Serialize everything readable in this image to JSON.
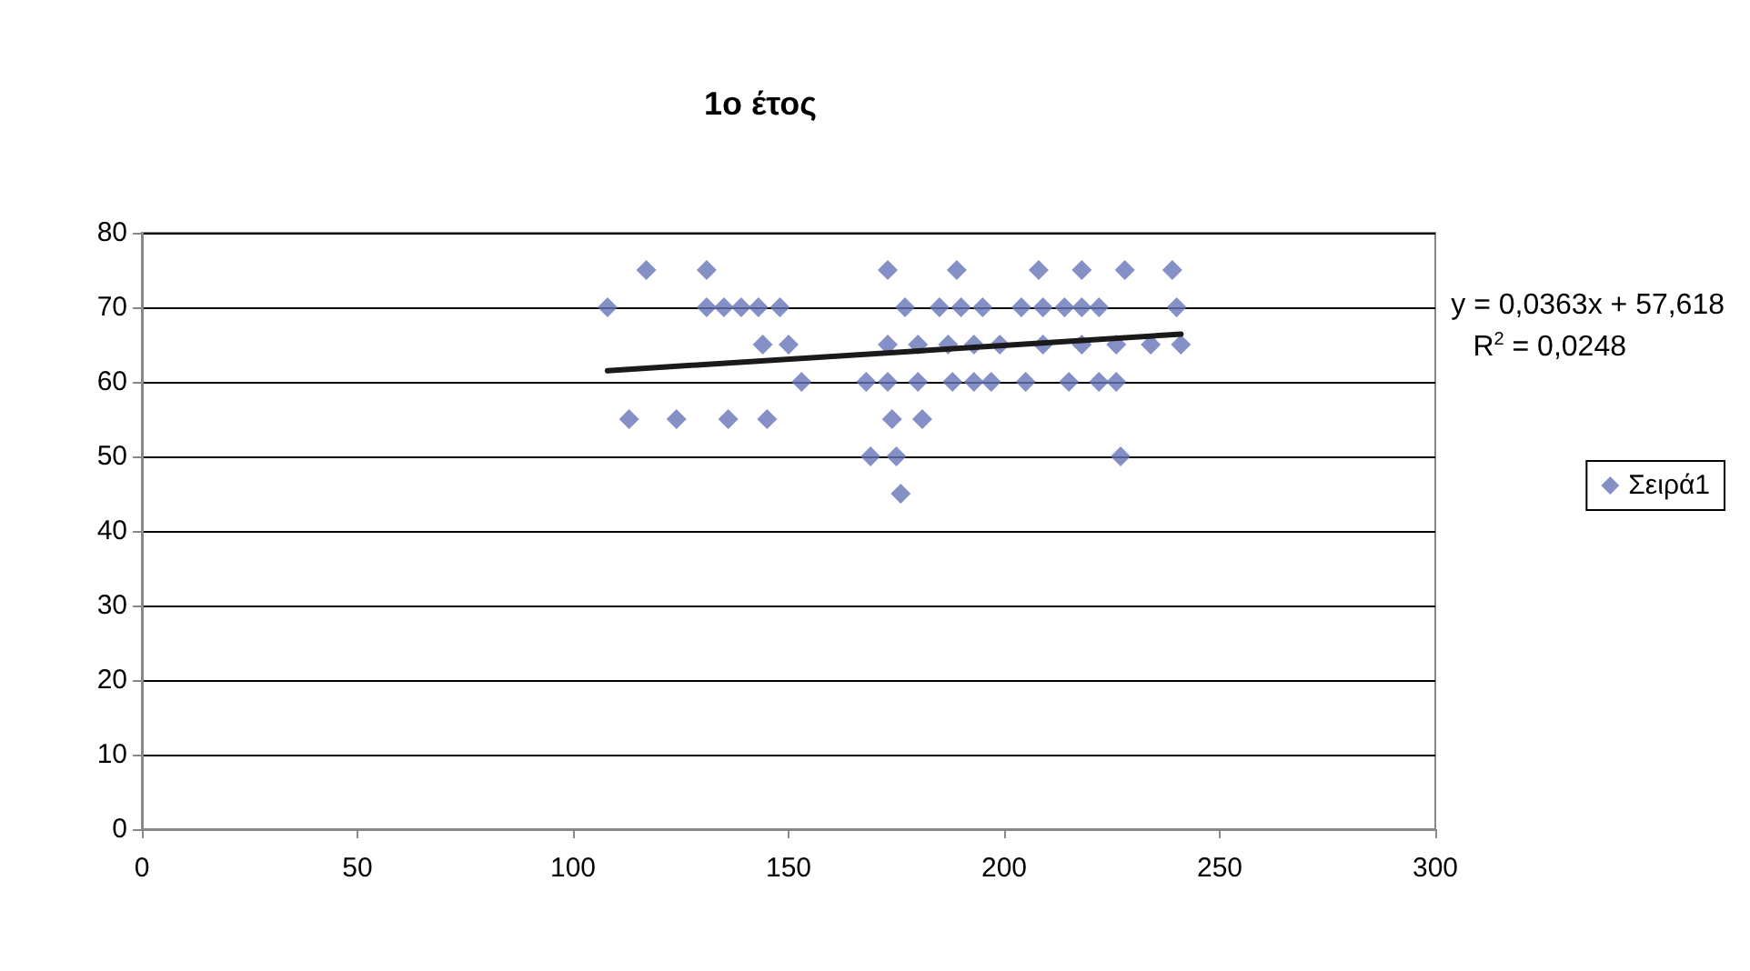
{
  "chart_data": {
    "type": "scatter",
    "title": "1ο έτος",
    "legend": "right",
    "grid": "y",
    "marker": "diamond",
    "xlim": [
      0,
      300
    ],
    "xticks": [
      0,
      50,
      100,
      150,
      200,
      250,
      300
    ],
    "ylim": [
      0,
      80
    ],
    "yticks": [
      0,
      10,
      20,
      30,
      40,
      50,
      60,
      70,
      80
    ],
    "annotations": [
      "y = 0,0363x + 57,618",
      "R$^{2}$ = 0,0248"
    ],
    "series": [
      {
        "name": "Σειρά1",
        "color": "#6675b8",
        "x": [
          117,
          131,
          173,
          189,
          208,
          218,
          228,
          239,
          108,
          131,
          135,
          139,
          143,
          148,
          177,
          185,
          190,
          195,
          204,
          209,
          214,
          218,
          222,
          240,
          144,
          150,
          173,
          180,
          187,
          193,
          199,
          209,
          218,
          226,
          234,
          241,
          153,
          168,
          173,
          180,
          188,
          193,
          197,
          205,
          215,
          222,
          226,
          113,
          124,
          136,
          145,
          174,
          181,
          169,
          175,
          227,
          176
        ],
        "values": [
          75,
          75,
          75,
          75,
          75,
          75,
          75,
          75,
          70,
          70,
          70,
          70,
          70,
          70,
          70,
          70,
          70,
          70,
          70,
          70,
          70,
          70,
          70,
          70,
          65,
          65,
          65,
          65,
          65,
          65,
          65,
          65,
          65,
          65,
          65,
          65,
          60,
          60,
          60,
          60,
          60,
          60,
          60,
          60,
          60,
          60,
          60,
          55,
          55,
          55,
          55,
          55,
          55,
          50,
          50,
          50,
          45
        ]
      },
      {
        "type": "line",
        "color": "#1a1a1a",
        "marker": "none",
        "x": [
          108,
          241
        ],
        "values": [
          61.5,
          66.4
        ]
      }
    ]
  }
}
